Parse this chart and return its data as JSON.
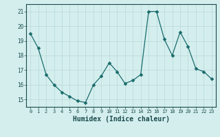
{
  "x": [
    0,
    1,
    2,
    3,
    4,
    5,
    6,
    7,
    8,
    9,
    10,
    11,
    12,
    13,
    14,
    15,
    16,
    17,
    18,
    19,
    20,
    21,
    22,
    23
  ],
  "y": [
    19.5,
    18.5,
    16.7,
    16.0,
    15.5,
    15.2,
    14.9,
    14.8,
    16.0,
    16.6,
    17.5,
    16.9,
    16.1,
    16.3,
    16.7,
    21.0,
    21.0,
    19.1,
    18.0,
    19.6,
    18.6,
    17.1,
    16.9,
    16.4
  ],
  "line_color": "#1a6b6b",
  "marker": "D",
  "marker_size": 2.5,
  "bg_color": "#d4eeee",
  "grid_color": "#b8d8d8",
  "xlabel": "Humidex (Indice chaleur)",
  "ylim": [
    14.5,
    21.5
  ],
  "xlim": [
    -0.5,
    23.5
  ],
  "yticks": [
    15,
    16,
    17,
    18,
    19,
    20,
    21
  ],
  "xticks": [
    0,
    1,
    2,
    3,
    4,
    5,
    6,
    7,
    8,
    9,
    10,
    11,
    12,
    13,
    14,
    15,
    16,
    17,
    18,
    19,
    20,
    21,
    22,
    23
  ]
}
